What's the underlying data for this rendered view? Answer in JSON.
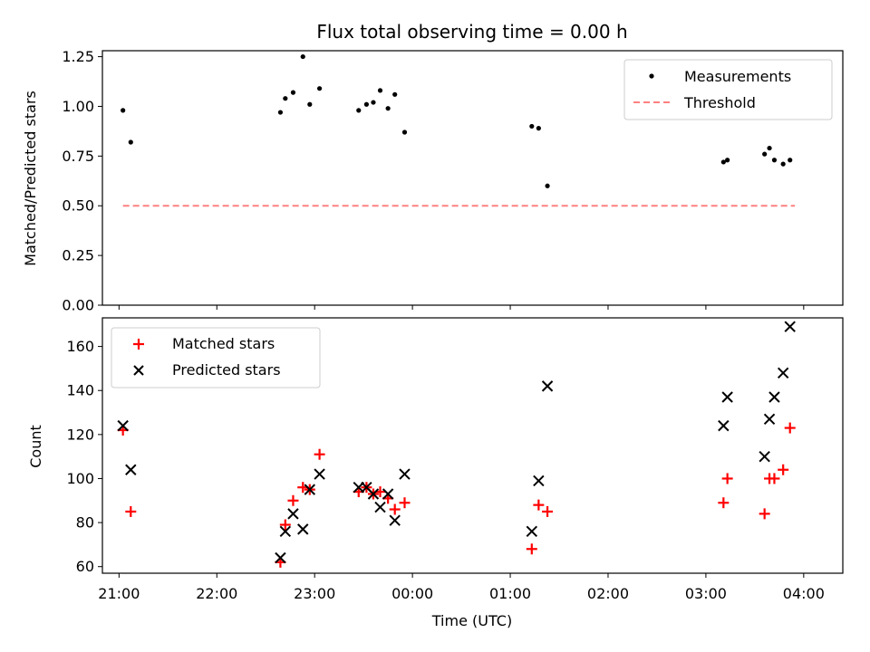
{
  "chart_data": [
    {
      "type": "scatter",
      "title": "Flux total observing time = 0.00 h",
      "ylabel": "Matched/Predicted stars",
      "xlabel": "",
      "xlim": [
        20.83,
        28.4
      ],
      "ylim": [
        0,
        1.28
      ],
      "yticks": [
        0.0,
        0.25,
        0.5,
        0.75,
        1.0,
        1.25
      ],
      "ytick_labels": [
        "0.00",
        "0.25",
        "0.50",
        "0.75",
        "1.00",
        "1.25"
      ],
      "legend": {
        "position": "top-right",
        "measurements_label": "Measurements",
        "threshold_label": "Threshold"
      },
      "measurements": {
        "x": [
          21.04,
          21.12,
          22.65,
          22.7,
          22.78,
          22.88,
          22.95,
          23.05,
          23.45,
          23.53,
          23.6,
          23.67,
          23.75,
          23.82,
          23.92,
          25.22,
          25.29,
          25.38,
          27.18,
          27.22,
          27.6,
          27.65,
          27.7,
          27.79,
          27.86
        ],
        "y": [
          0.98,
          0.82,
          0.97,
          1.04,
          1.07,
          1.25,
          1.01,
          1.09,
          0.98,
          1.01,
          1.02,
          1.08,
          0.99,
          1.06,
          0.87,
          0.9,
          0.89,
          0.6,
          0.72,
          0.73,
          0.76,
          0.79,
          0.73,
          0.71,
          0.73
        ]
      },
      "threshold": {
        "x": [
          21.04,
          27.91
        ],
        "y": [
          0.5,
          0.5
        ],
        "color": "#ff8080"
      }
    },
    {
      "type": "scatter",
      "title": "",
      "ylabel": "Count",
      "xlabel": "Time (UTC)",
      "xlim": [
        20.83,
        28.4
      ],
      "ylim": [
        57,
        173
      ],
      "yticks": [
        60,
        80,
        100,
        120,
        140,
        160
      ],
      "ytick_labels": [
        "60",
        "80",
        "100",
        "120",
        "140",
        "160"
      ],
      "xticks": [
        21,
        22,
        23,
        24,
        25,
        26,
        27,
        28
      ],
      "xtick_labels": [
        "21:00",
        "22:00",
        "23:00",
        "00:00",
        "01:00",
        "02:00",
        "03:00",
        "04:00"
      ],
      "legend": {
        "position": "top-left",
        "matched_label": "Matched stars",
        "predicted_label": "Predicted stars"
      },
      "series": [
        {
          "name": "Matched stars",
          "color": "#ff0000",
          "marker": "+",
          "x": [
            21.04,
            21.12,
            22.65,
            22.7,
            22.78,
            22.88,
            22.95,
            23.05,
            23.45,
            23.53,
            23.6,
            23.67,
            23.75,
            23.82,
            23.92,
            25.22,
            25.29,
            25.38,
            27.18,
            27.22,
            27.6,
            27.65,
            27.7,
            27.79,
            27.86
          ],
          "values": [
            122,
            85,
            62,
            79,
            90,
            96,
            95,
            111,
            94,
            96,
            93,
            94,
            91,
            86,
            89,
            68,
            88,
            85,
            89,
            100,
            84,
            100,
            100,
            104,
            123
          ]
        },
        {
          "name": "Predicted stars",
          "color": "#000000",
          "marker": "x",
          "x": [
            21.04,
            21.12,
            22.65,
            22.7,
            22.78,
            22.88,
            22.95,
            23.05,
            23.45,
            23.53,
            23.6,
            23.67,
            23.75,
            23.82,
            23.92,
            25.22,
            25.29,
            25.38,
            27.18,
            27.22,
            27.6,
            27.65,
            27.7,
            27.79,
            27.86
          ],
          "values": [
            124,
            104,
            64,
            76,
            84,
            77,
            95,
            102,
            96,
            96,
            93,
            87,
            93,
            81,
            102,
            76,
            99,
            142,
            124,
            137,
            110,
            127,
            137,
            148,
            169
          ]
        }
      ]
    }
  ]
}
